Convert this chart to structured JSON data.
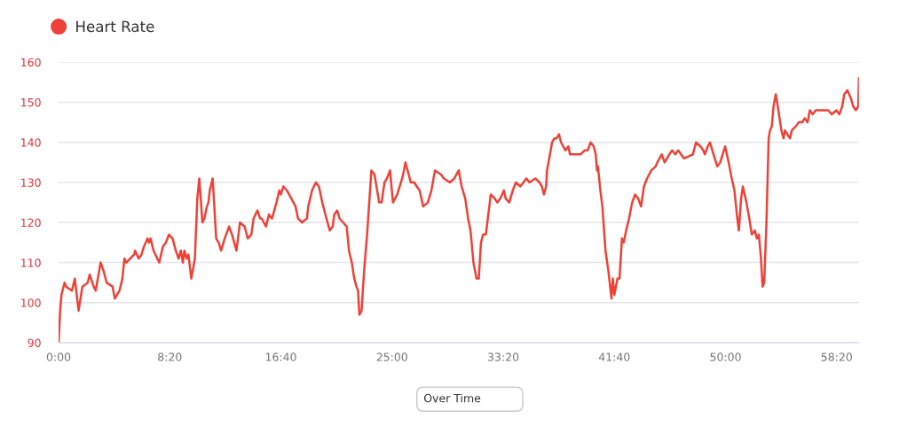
{
  "chart_data": {
    "type": "line",
    "series": [
      {
        "name": "Heart Rate",
        "color": "#ef4136",
        "x": [
          0,
          7,
          13,
          27,
          34,
          60,
          73,
          90,
          107,
          131,
          140,
          158,
          167,
          189,
          202,
          216,
          243,
          253,
          274,
          287,
          296,
          304,
          340,
          344,
          360,
          373,
          384,
          400,
          407,
          414,
          427,
          453,
          469,
          483,
          496,
          513,
          527,
          540,
          550,
          559,
          566,
          576,
          584,
          597,
          613,
          624,
          633,
          647,
          656,
          667,
          674,
          680,
          693,
          709,
          720,
          731,
          747,
          767,
          780,
          800,
          816,
          837,
          851,
          867,
          877,
          894,
          907,
          914,
          923,
          933,
          946,
          960,
          980,
          993,
          1000,
          1011,
          1027,
          1047,
          1066,
          1077,
          1095,
          1117,
          1123,
          1140,
          1157,
          1171,
          1186,
          1200,
          1220,
          1233,
          1240,
          1253,
          1264,
          1280,
          1296,
          1306,
          1319,
          1330,
          1340,
          1347,
          1353,
          1363,
          1373,
          1389,
          1407,
          1421,
          1442,
          1453,
          1466,
          1477,
          1491,
          1504,
          1523,
          1540,
          1550,
          1560,
          1570,
          1584,
          1600,
          1611,
          1624,
          1640,
          1661,
          1677,
          1693,
          1720,
          1733,
          1760,
          1780,
          1800,
          1813,
          1829,
          1842,
          1853,
          1866,
          1880,
          1890,
          1900,
          1909,
          1922,
          1933,
          1944,
          1962,
          1973,
          1987,
          2003,
          2011,
          2027,
          2043,
          2057,
          2077,
          2091,
          2104,
          2118,
          2144,
          2163,
          2174,
          2183,
          2193,
          2197,
          2207,
          2220,
          2230,
          2240,
          2251,
          2260,
          2280,
          2293,
          2300,
          2313,
          2331,
          2347,
          2367,
          2380,
          2393,
          2407,
          2416,
          2422,
          2426,
          2437,
          2446,
          2460,
          2473,
          2487,
          2493,
          2500,
          2514,
          2523,
          2534,
          2542,
          2553,
          2566,
          2580,
          2593,
          2607,
          2620,
          2633,
          2647,
          2666,
          2686,
          2693,
          2713,
          2726,
          2747,
          2760,
          2774,
          2787,
          2800,
          2813,
          2853,
          2867,
          2887,
          2900,
          2907,
          2920,
          2930,
          2946,
          2963,
          2976,
          2987,
          2998,
          3014,
          3028,
          3040,
          3051,
          3060,
          3070,
          3078,
          3094,
          3107,
          3118,
          3132,
          3141,
          3150,
          3158,
          3167,
          3174,
          3184,
          3194,
          3200,
          3208,
          3216,
          3226,
          3235,
          3243,
          3251,
          3261,
          3267,
          3278,
          3290,
          3298,
          3316,
          3329,
          3345,
          3356,
          3369,
          3379,
          3392,
          3406,
          3426,
          3445,
          3462,
          3478,
          3499,
          3512,
          3525,
          3534,
          3548,
          3564,
          3574,
          3586,
          3597,
          3600
        ],
        "values": [
          90,
          98,
          102,
          105,
          104,
          103,
          106,
          98,
          104,
          105,
          107,
          104,
          103,
          110,
          108,
          105,
          104,
          101,
          103,
          106,
          111,
          110,
          112,
          113,
          111,
          112,
          114,
          116,
          115,
          116,
          113,
          110,
          114,
          115,
          117,
          116,
          113,
          111,
          113,
          110,
          113,
          111,
          112,
          106,
          111,
          126,
          131,
          120,
          121,
          124,
          125,
          128,
          131,
          116,
          115,
          113,
          116,
          119,
          117,
          113,
          120,
          119,
          116,
          117,
          121,
          123,
          121,
          121,
          120,
          119,
          122,
          121,
          125,
          128,
          127,
          129,
          128,
          126,
          124,
          121,
          120,
          121,
          124,
          128,
          130,
          129,
          125,
          122,
          118,
          119,
          122,
          123,
          121,
          120,
          119,
          113,
          110,
          106,
          104,
          103,
          97,
          98,
          107,
          118,
          133,
          132,
          125,
          125,
          130,
          131,
          133,
          125,
          127,
          130,
          132,
          135,
          133,
          130,
          130,
          129,
          128,
          124,
          125,
          128,
          133,
          132,
          131,
          130,
          131,
          133,
          129,
          126,
          121,
          118,
          110,
          106,
          106,
          115,
          117,
          117,
          122,
          127,
          126,
          125,
          126,
          128,
          126,
          125,
          128,
          130,
          129,
          130,
          131,
          130,
          131,
          130,
          129,
          127,
          129,
          133,
          136,
          140,
          141,
          141,
          142,
          140,
          138,
          139,
          137,
          137,
          137,
          137,
          138,
          138,
          140,
          139,
          137,
          133,
          134,
          128,
          124,
          113,
          108,
          101,
          106,
          102,
          106,
          106,
          116,
          115,
          118,
          121,
          125,
          127,
          126,
          124,
          129,
          131,
          133,
          134,
          135,
          137,
          135,
          137,
          138,
          137,
          138,
          137,
          136,
          137,
          140,
          139,
          138,
          137,
          139,
          140,
          137,
          134,
          135,
          137,
          139,
          135,
          131,
          128,
          122,
          118,
          126,
          129,
          125,
          121,
          117,
          118,
          116,
          117,
          112,
          104,
          105,
          120,
          141,
          143,
          144,
          149,
          152,
          149,
          146,
          143,
          141,
          143,
          142,
          141,
          143,
          144,
          145,
          145,
          146,
          145,
          148,
          147,
          148,
          148,
          148,
          148,
          147,
          148,
          147,
          149,
          152,
          153,
          151,
          149,
          148,
          149,
          156
        ]
      }
    ],
    "xlim": [
      0,
      3600
    ],
    "xticks": [
      {
        "value": 0,
        "label": "0:00"
      },
      {
        "value": 500,
        "label": "8:20"
      },
      {
        "value": 1000,
        "label": "16:40"
      },
      {
        "value": 1500,
        "label": "25:00"
      },
      {
        "value": 2000,
        "label": "33:20"
      },
      {
        "value": 2500,
        "label": "41:40"
      },
      {
        "value": 3000,
        "label": "50:00"
      },
      {
        "value": 3500,
        "label": "58:20"
      }
    ],
    "ylim": [
      90,
      160
    ],
    "yticks": [
      90,
      100,
      110,
      120,
      130,
      140,
      150,
      160
    ],
    "grid": "y",
    "legend": "top left",
    "marker": "none",
    "line_style": "solid",
    "annotations": [
      "Over Time"
    ]
  }
}
